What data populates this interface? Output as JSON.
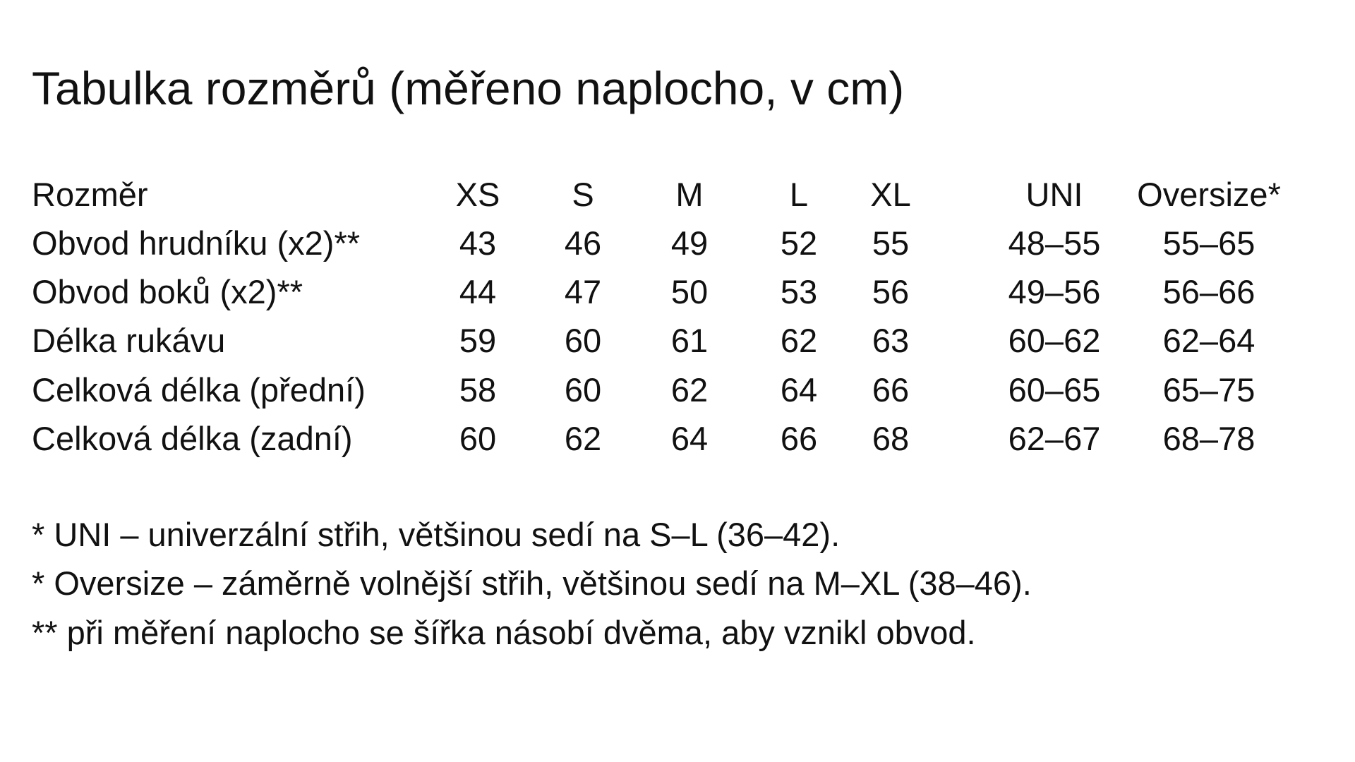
{
  "title": "Tabulka rozměrů   (měřeno naplocho, v cm)",
  "table": {
    "header": [
      "Rozměr",
      "XS",
      "S",
      "M",
      "L",
      "XL",
      "UNI",
      "Oversize*"
    ],
    "rows": [
      [
        "Obvod hrudníku (x2)**",
        "43",
        "46",
        "49",
        "52",
        "55",
        "48–55",
        "55–65"
      ],
      [
        "Obvod boků (x2)**",
        "44",
        "47",
        "50",
        "53",
        "56",
        "49–56",
        "56–66"
      ],
      [
        "Délka rukávu",
        "59",
        "60",
        "61",
        "62",
        "63",
        "60–62",
        "62–64"
      ],
      [
        "Celková délka (přední)",
        "58",
        "60",
        "62",
        "64",
        "66",
        "60–65",
        "65–75"
      ],
      [
        "Celková délka (zadní)",
        "60",
        "62",
        "64",
        "66",
        "68",
        "62–67",
        "68–78"
      ]
    ]
  },
  "footnotes": [
    "* UNI – univerzální střih, většinou sedí na S–L (36–42).",
    "* Oversize – záměrně volnější střih, většinou sedí na M–XL (38–46).",
    "** při měření naplocho se šířka násobí dvěma, aby vznikl obvod."
  ]
}
